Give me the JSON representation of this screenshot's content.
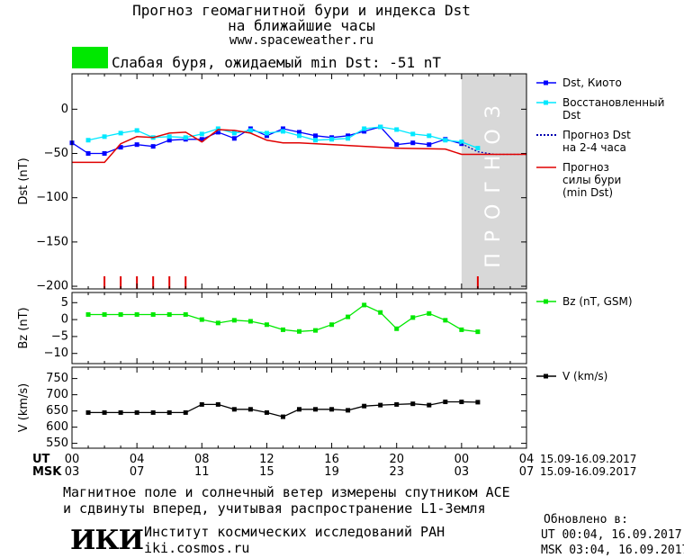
{
  "header": {
    "title_line1": "Прогноз геомагнитной бури и индекса Dst",
    "title_line2": "на ближайшие часы",
    "site": "www.spaceweather.ru"
  },
  "status": {
    "text": "Слабая буря, ожидаемый min Dst: -51 nT",
    "color": "#00e800"
  },
  "chart_data": [
    {
      "type": "line",
      "ylabel": "Dst (nT)",
      "ylim": [
        -203,
        40
      ],
      "yticks": [
        0,
        -50,
        -100,
        -150,
        -200
      ],
      "xlim": [
        0,
        28
      ],
      "forecast_region": {
        "x_start": 24,
        "x_end": 28,
        "label": "ПРОГНОЗ",
        "color": "#d8d8d8"
      },
      "series": [
        {
          "name": "Dst, Киото",
          "color": "#0000ff",
          "marker": "square",
          "x": [
            0,
            1,
            2,
            3,
            4,
            5,
            6,
            7,
            8,
            9,
            10,
            11,
            12,
            13,
            14,
            15,
            16,
            17,
            18,
            19,
            20,
            21,
            22,
            23,
            24
          ],
          "y": [
            -38,
            -50,
            -50,
            -43,
            -40,
            -42,
            -35,
            -34,
            -34,
            -26,
            -33,
            -22,
            -30,
            -22,
            -26,
            -30,
            -32,
            -30,
            -25,
            -20,
            -40,
            -38,
            -40,
            -34,
            -39
          ]
        },
        {
          "name": "Восстановленный Dst",
          "color": "#00e8ff",
          "marker": "square",
          "x": [
            1,
            2,
            3,
            4,
            5,
            6,
            7,
            8,
            9,
            10,
            11,
            12,
            13,
            14,
            15,
            16,
            17,
            18,
            19,
            20,
            21,
            22,
            23,
            24,
            25
          ],
          "y": [
            -35,
            -31,
            -27,
            -24,
            -32,
            -31,
            -32,
            -28,
            -22,
            -27,
            -24,
            -27,
            -25,
            -30,
            -35,
            -34,
            -33,
            -22,
            -20,
            -23,
            -28,
            -30,
            -35,
            -37,
            -44
          ]
        },
        {
          "name": "Прогноз Dst на 2-4 часа",
          "color": "#0000b0",
          "marker": "dot",
          "x": [
            24,
            25,
            26,
            27,
            28
          ],
          "y": [
            -39,
            -48,
            -51,
            -51,
            -51
          ]
        },
        {
          "name": "Прогноз силы бури (min Dst)",
          "color": "#e00000",
          "marker": "none",
          "x": [
            0,
            2,
            3,
            4,
            5,
            6,
            7,
            8,
            9,
            10,
            11,
            12,
            13,
            14,
            20,
            23,
            24,
            28
          ],
          "y": [
            -60,
            -60,
            -39,
            -31,
            -32,
            -27,
            -26,
            -37,
            -23,
            -24,
            -27,
            -35,
            -38,
            -38,
            -44,
            -45,
            -51,
            -51
          ]
        }
      ],
      "storm_markers": {
        "color": "#e00000",
        "x": [
          2,
          3,
          4,
          5,
          6,
          7,
          25
        ]
      }
    },
    {
      "type": "line",
      "ylabel": "Bz (nT)",
      "ylim": [
        -13,
        8
      ],
      "yticks": [
        5,
        0,
        -5,
        -10
      ],
      "xlim": [
        0,
        28
      ],
      "series": [
        {
          "name": "Bz (nT, GSM)",
          "color": "#00e800",
          "marker": "square",
          "x": [
            1,
            2,
            3,
            4,
            5,
            6,
            7,
            8,
            9,
            10,
            11,
            12,
            13,
            14,
            15,
            16,
            17,
            18,
            19,
            20,
            21,
            22,
            23,
            24,
            25
          ],
          "y": [
            1.5,
            1.5,
            1.5,
            1.5,
            1.5,
            1.5,
            1.5,
            0,
            -1,
            -0.2,
            -0.5,
            -1.5,
            -3,
            -3.5,
            -3.2,
            -1.5,
            0.8,
            4.3,
            2.1,
            -2.7,
            0.6,
            1.8,
            -0.2,
            -3,
            -3.6
          ]
        }
      ]
    },
    {
      "type": "line",
      "ylabel": "V (km/s)",
      "ylim": [
        535,
        785
      ],
      "yticks": [
        550,
        600,
        650,
        700,
        750
      ],
      "xlim": [
        0,
        28
      ],
      "series": [
        {
          "name": "V (km/s)",
          "color": "#000000",
          "marker": "square",
          "x": [
            1,
            2,
            3,
            4,
            5,
            6,
            7,
            8,
            9,
            10,
            11,
            12,
            13,
            14,
            15,
            16,
            17,
            18,
            19,
            20,
            21,
            22,
            23,
            24,
            25
          ],
          "y": [
            645,
            645,
            645,
            645,
            645,
            645,
            645,
            670,
            670,
            655,
            655,
            645,
            632,
            655,
            655,
            655,
            652,
            665,
            668,
            670,
            672,
            668,
            678,
            678,
            677
          ]
        }
      ]
    }
  ],
  "axis": {
    "ut_label": "UT",
    "msk_label": "MSK",
    "ut_ticks": [
      "00",
      "04",
      "08",
      "12",
      "16",
      "20",
      "00",
      "04"
    ],
    "msk_ticks": [
      "03",
      "07",
      "11",
      "15",
      "19",
      "23",
      "03",
      "07"
    ],
    "ut_range": "15.09-16.09.2017",
    "msk_range": "15.09-16.09.2017"
  },
  "footer": {
    "line1": "Магнитное поле и солнечный ветер измерены спутником ACE",
    "line2": "и сдвинуты вперед, учитывая распространение L1-Земля",
    "logo_text": "ИКИ",
    "institute": "Институт космических исследований РАН",
    "institute_url": "iki.cosmos.ru",
    "updated_label": "Обновлено в:",
    "updated_ut": "UT   00:04, 16.09.2017",
    "updated_msk": "MSK 03:04, 16.09.2017"
  }
}
